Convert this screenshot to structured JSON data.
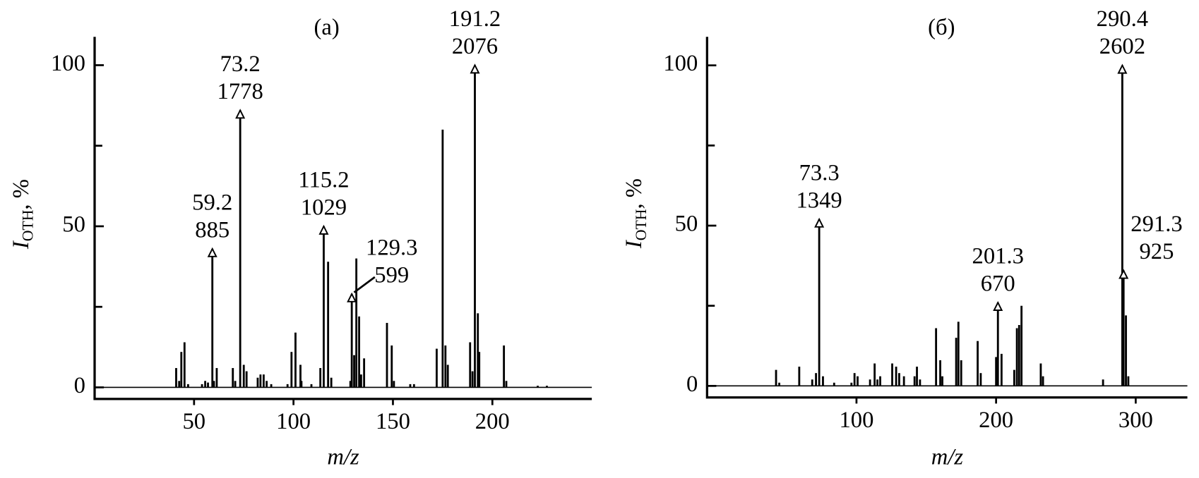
{
  "chart_data": [
    {
      "type": "bar",
      "title": "(a)",
      "xlabel": "m/z",
      "ylabel": {
        "main": "I",
        "sub": "ОТН",
        "tail": ", %"
      },
      "color": "#000000",
      "x": [
        41,
        42.5,
        43.6,
        45.2,
        47,
        54,
        55.6,
        57,
        59.2,
        60,
        61.4,
        69.5,
        70.7,
        73.2,
        75,
        76.4,
        82,
        83.4,
        85,
        86.5,
        88.8,
        97,
        99,
        101,
        103.5,
        104,
        109,
        113.5,
        115.2,
        117.4,
        119,
        128.6,
        129.3,
        130.5,
        131.6,
        133,
        134,
        135.5,
        147,
        149.4,
        150.5,
        158.7,
        160.6,
        172,
        175,
        176.4,
        177.6,
        188.8,
        190,
        191.2,
        192.7,
        193.4,
        205.8,
        207,
        222.8,
        227.4
      ],
      "values": [
        6,
        2,
        11,
        14,
        1,
        1,
        2,
        1.5,
        43,
        2,
        6,
        6,
        2,
        86,
        7,
        5,
        3,
        4,
        4,
        2,
        1,
        1,
        11,
        17,
        7,
        2,
        1,
        6,
        50,
        39,
        3,
        2,
        29,
        10,
        40,
        22,
        4,
        9,
        20,
        13,
        2,
        1,
        1,
        12,
        80,
        13,
        7,
        14,
        5,
        100,
        23,
        11,
        13,
        2,
        0.5,
        0.5
      ],
      "annotations": [
        {
          "x": 59.2,
          "count": 885
        },
        {
          "x": 73.2,
          "count": 1778
        },
        {
          "x": 115.2,
          "count": 1029
        },
        {
          "x": 129.3,
          "count": 599
        },
        {
          "x": 191.2,
          "count": 2076
        }
      ],
      "xlim": [
        0,
        250
      ],
      "xticks": [
        50,
        100,
        150,
        200
      ],
      "ylim": [
        -3.6,
        108.8
      ],
      "yticks": [
        0,
        50,
        100
      ],
      "minor_yticks": [
        25,
        75
      ]
    },
    {
      "type": "bar",
      "title": "(б)",
      "xlabel": "m/z",
      "ylabel": {
        "main": "I",
        "sub": "ОТН",
        "tail": ", %"
      },
      "color": "#000000",
      "x": [
        42.4,
        44.7,
        59,
        68.3,
        71,
        73.3,
        76,
        84,
        96.4,
        98.6,
        100.8,
        109.7,
        113,
        115,
        117,
        125.6,
        128.4,
        130.6,
        134,
        141.6,
        143.3,
        145.5,
        157,
        160,
        161.5,
        171.4,
        173,
        175,
        186.8,
        189,
        200,
        201.3,
        203.9,
        213,
        214.9,
        216.5,
        218.2,
        232,
        233.6,
        276.6,
        290.4,
        291.3,
        293,
        294.7
      ],
      "values": [
        5,
        1,
        6,
        2,
        4,
        52,
        3,
        1,
        1,
        4,
        3,
        2,
        7,
        2,
        3,
        7,
        6,
        4,
        3,
        3,
        6,
        2,
        18,
        8,
        3,
        15,
        20,
        8,
        14,
        4,
        9,
        26,
        10,
        5,
        18,
        19,
        25,
        7,
        3,
        2,
        100,
        36,
        22,
        3
      ],
      "annotations": [
        {
          "x": 73.3,
          "count": 1349
        },
        {
          "x": 201.3,
          "count": 670
        },
        {
          "x": 290.4,
          "count": 2602
        },
        {
          "x": 291.3,
          "count": 925
        }
      ],
      "xlim": [
        -7,
        337
      ],
      "xticks": [
        100,
        200,
        300
      ],
      "ylim": [
        -3.6,
        108.9
      ],
      "yticks": [
        0,
        50,
        100
      ],
      "minor_yticks": [
        25,
        75
      ]
    }
  ]
}
